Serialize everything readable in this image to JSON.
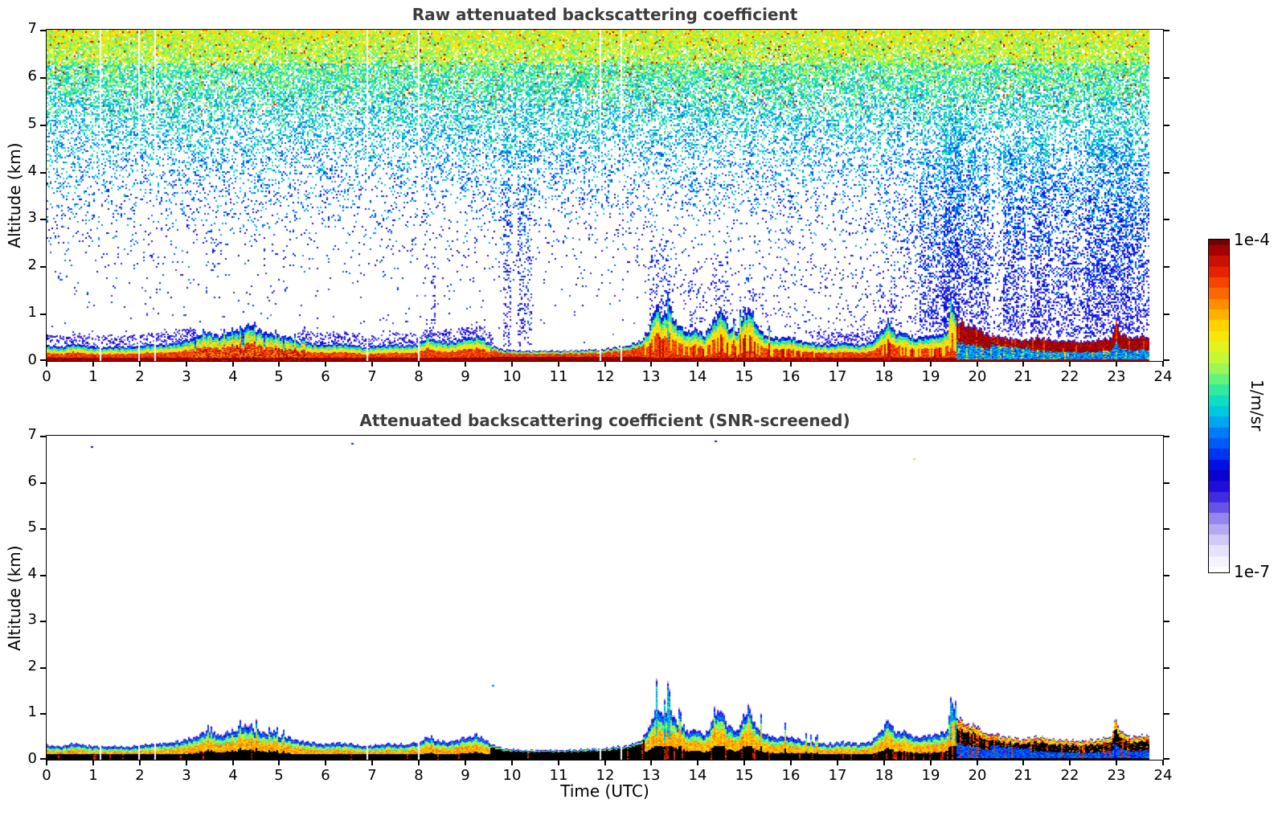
{
  "figure": {
    "background": "#ffffff"
  },
  "colorbar": {
    "max_label": "1e-4",
    "min_label": "1e-7",
    "units": "1/m/sr"
  },
  "colormap": {
    "stops": [
      [
        0.0,
        "#ffffff"
      ],
      [
        0.04,
        "#f2f0fc"
      ],
      [
        0.08,
        "#ded9fa"
      ],
      [
        0.12,
        "#beb4f2"
      ],
      [
        0.16,
        "#9688ec"
      ],
      [
        0.2,
        "#5d48e6"
      ],
      [
        0.25,
        "#2410dc"
      ],
      [
        0.29,
        "#0a00d0"
      ],
      [
        0.33,
        "#0013e8"
      ],
      [
        0.37,
        "#0048f4"
      ],
      [
        0.42,
        "#007df8"
      ],
      [
        0.46,
        "#00b1f0"
      ],
      [
        0.5,
        "#00d8d2"
      ],
      [
        0.54,
        "#22e7a7"
      ],
      [
        0.58,
        "#66f37a"
      ],
      [
        0.62,
        "#a5f84e"
      ],
      [
        0.66,
        "#d8f629"
      ],
      [
        0.7,
        "#f4ec0d"
      ],
      [
        0.74,
        "#ffd500"
      ],
      [
        0.78,
        "#ffab00"
      ],
      [
        0.82,
        "#ff7d00"
      ],
      [
        0.86,
        "#fb4f00"
      ],
      [
        0.9,
        "#ea2400"
      ],
      [
        0.94,
        "#c80d00"
      ],
      [
        0.97,
        "#a00000"
      ],
      [
        1.0,
        "#730000"
      ]
    ],
    "n_discrete_bands": 32
  },
  "scene": {
    "data_end_hour": 23.7,
    "gaps_hours": [
      1.17,
      1.98,
      2.33,
      6.88,
      7.99,
      11.92,
      12.36
    ],
    "boundary_layer_top_km": [
      [
        0,
        0.33
      ],
      [
        0.3,
        0.3
      ],
      [
        0.6,
        0.38
      ],
      [
        0.9,
        0.32
      ],
      [
        1.2,
        0.3
      ],
      [
        1.5,
        0.32
      ],
      [
        1.8,
        0.3
      ],
      [
        2.1,
        0.34
      ],
      [
        2.4,
        0.36
      ],
      [
        2.7,
        0.38
      ],
      [
        3.0,
        0.45
      ],
      [
        3.2,
        0.52
      ],
      [
        3.45,
        0.62
      ],
      [
        3.7,
        0.55
      ],
      [
        3.95,
        0.62
      ],
      [
        4.15,
        0.7
      ],
      [
        4.35,
        0.78
      ],
      [
        4.55,
        0.65
      ],
      [
        4.75,
        0.6
      ],
      [
        5.0,
        0.55
      ],
      [
        5.2,
        0.5
      ],
      [
        5.45,
        0.42
      ],
      [
        5.7,
        0.38
      ],
      [
        6.0,
        0.36
      ],
      [
        6.3,
        0.38
      ],
      [
        6.6,
        0.35
      ],
      [
        6.85,
        0.3
      ],
      [
        7.1,
        0.33
      ],
      [
        7.4,
        0.36
      ],
      [
        7.7,
        0.34
      ],
      [
        8.0,
        0.38
      ],
      [
        8.2,
        0.55
      ],
      [
        8.35,
        0.45
      ],
      [
        8.6,
        0.4
      ],
      [
        8.85,
        0.45
      ],
      [
        9.05,
        0.52
      ],
      [
        9.25,
        0.55
      ],
      [
        9.4,
        0.48
      ],
      [
        9.55,
        0.35
      ],
      [
        9.8,
        0.25
      ],
      [
        10.2,
        0.22
      ],
      [
        10.8,
        0.22
      ],
      [
        11.4,
        0.23
      ],
      [
        12.0,
        0.26
      ],
      [
        12.5,
        0.32
      ],
      [
        12.8,
        0.45
      ],
      [
        12.95,
        0.7
      ],
      [
        13.1,
        1.2
      ],
      [
        13.25,
        0.95
      ],
      [
        13.4,
        1.15
      ],
      [
        13.55,
        0.8
      ],
      [
        13.75,
        0.62
      ],
      [
        13.95,
        0.68
      ],
      [
        14.15,
        0.55
      ],
      [
        14.35,
        0.9
      ],
      [
        14.5,
        1.1
      ],
      [
        14.65,
        0.75
      ],
      [
        14.85,
        0.62
      ],
      [
        15.0,
        1.0
      ],
      [
        15.1,
        1.2
      ],
      [
        15.25,
        0.75
      ],
      [
        15.45,
        0.55
      ],
      [
        15.7,
        0.5
      ],
      [
        15.95,
        0.52
      ],
      [
        16.2,
        0.45
      ],
      [
        16.5,
        0.38
      ],
      [
        16.8,
        0.36
      ],
      [
        17.1,
        0.4
      ],
      [
        17.45,
        0.36
      ],
      [
        17.75,
        0.42
      ],
      [
        17.95,
        0.65
      ],
      [
        18.1,
        0.9
      ],
      [
        18.25,
        0.6
      ],
      [
        18.45,
        0.62
      ],
      [
        18.65,
        0.5
      ],
      [
        18.9,
        0.55
      ],
      [
        19.15,
        0.55
      ],
      [
        19.32,
        0.62
      ],
      [
        19.38,
        0.68
      ],
      [
        19.44,
        1.5
      ],
      [
        19.52,
        1.05
      ],
      [
        19.6,
        0.9
      ],
      [
        19.75,
        0.8
      ],
      [
        19.95,
        0.75
      ],
      [
        20.15,
        0.62
      ],
      [
        20.4,
        0.55
      ],
      [
        20.7,
        0.5
      ],
      [
        21.0,
        0.46
      ],
      [
        21.3,
        0.52
      ],
      [
        21.6,
        0.46
      ],
      [
        21.9,
        0.44
      ],
      [
        22.2,
        0.42
      ],
      [
        22.5,
        0.44
      ],
      [
        22.8,
        0.5
      ],
      [
        22.9,
        0.5
      ],
      [
        22.98,
        0.92
      ],
      [
        23.08,
        0.62
      ],
      [
        23.35,
        0.5
      ],
      [
        23.55,
        0.55
      ],
      [
        23.7,
        0.5
      ]
    ],
    "regimes": [
      {
        "t0": 0,
        "t1": 3.0,
        "style": "normal"
      },
      {
        "t0": 3.0,
        "t1": 5.6,
        "style": "convective"
      },
      {
        "t0": 5.6,
        "t1": 9.55,
        "style": "normal"
      },
      {
        "t0": 9.55,
        "t1": 12.85,
        "style": "thin"
      },
      {
        "t0": 12.85,
        "t1": 16.6,
        "style": "plume"
      },
      {
        "t0": 16.6,
        "t1": 17.8,
        "style": "normal"
      },
      {
        "t0": 17.8,
        "t1": 19.55,
        "style": "plume"
      },
      {
        "t0": 19.55,
        "t1": 23.75,
        "style": "inverted"
      }
    ],
    "surface_blue_interval": [
      20.3,
      21.15
    ],
    "cap_speckle_intervals": [
      [
        0,
        3.2
      ],
      [
        5.4,
        9.6
      ],
      [
        16.4,
        17.9
      ]
    ],
    "blue_noise_events": [
      {
        "t0": 8.25,
        "t1": 8.38,
        "top_km": 2.3,
        "density": 0.22
      },
      {
        "t0": 9.82,
        "t1": 9.98,
        "top_km": 4.7,
        "density": 0.3
      },
      {
        "t0": 10.12,
        "t1": 10.45,
        "top_km": 4.6,
        "density": 0.25
      },
      {
        "t0": 12.95,
        "t1": 13.45,
        "top_km": 2.6,
        "density": 0.22
      },
      {
        "t0": 13.8,
        "t1": 14.0,
        "top_km": 1.8,
        "density": 0.15
      },
      {
        "t0": 14.35,
        "t1": 14.65,
        "top_km": 2.3,
        "density": 0.2
      },
      {
        "t0": 14.95,
        "t1": 15.2,
        "top_km": 2.1,
        "density": 0.18
      },
      {
        "t0": 12.85,
        "t1": 18.0,
        "top_km": 2.0,
        "density": 0.08
      },
      {
        "t0": 17.85,
        "t1": 18.25,
        "top_km": 1.9,
        "density": 0.15
      },
      {
        "t0": 18.75,
        "t1": 19.3,
        "top_km": 4.2,
        "density": 0.3
      },
      {
        "t0": 19.3,
        "t1": 19.65,
        "top_km": 5.2,
        "density": 0.55
      },
      {
        "t0": 19.65,
        "t1": 20.3,
        "top_km": 4.3,
        "density": 0.3
      },
      {
        "t0": 20.55,
        "t1": 21.05,
        "top_km": 4.6,
        "density": 0.35
      },
      {
        "t0": 21.15,
        "t1": 21.55,
        "top_km": 4.8,
        "density": 0.4
      },
      {
        "t0": 21.55,
        "t1": 22.35,
        "top_km": 4.0,
        "density": 0.22
      },
      {
        "t0": 22.35,
        "t1": 23.35,
        "top_km": 4.9,
        "density": 0.42
      },
      {
        "t0": 23.35,
        "t1": 23.72,
        "top_km": 4.2,
        "density": 0.35
      },
      {
        "t0": 18.0,
        "t1": 23.72,
        "top_km": 4.5,
        "density": 0.12
      }
    ]
  },
  "chart_data": [
    {
      "type": "heatmap",
      "title": "Raw attenuated backscattering coefficient",
      "xlabel": "",
      "ylabel": "Altitude (km)",
      "xlim": [
        0,
        24
      ],
      "ylim": [
        0,
        7
      ],
      "x_tick_labels": [
        "0",
        "1",
        "2",
        "3",
        "4",
        "5",
        "6",
        "7",
        "8",
        "9",
        "10",
        "11",
        "12",
        "13",
        "14",
        "15",
        "16",
        "17",
        "18",
        "19",
        "20",
        "21",
        "22",
        "23",
        "24"
      ],
      "y_tick_labels": [
        "0",
        "1",
        "2",
        "3",
        "4",
        "5",
        "6",
        "7"
      ],
      "value_scale": "log10, 1e-7 to 1e-4 1/m/sr",
      "surface": "dark-red",
      "noise": {
        "present": true,
        "top_density": 0.97,
        "scale_km": 2.2,
        "power": 1.5,
        "value_base": 0.26,
        "value_gain": 0.36,
        "value_jitter": 0.2,
        "red_speck_prob": 0.035
      }
    },
    {
      "type": "heatmap",
      "title": "Attenuated backscattering coefficient (SNR-screened)",
      "xlabel": "Time (UTC)",
      "ylabel": "Altitude (km)",
      "xlim": [
        0,
        24
      ],
      "ylim": [
        0,
        7
      ],
      "x_tick_labels": [
        "0",
        "1",
        "2",
        "3",
        "4",
        "5",
        "6",
        "7",
        "8",
        "9",
        "10",
        "11",
        "12",
        "13",
        "14",
        "15",
        "16",
        "17",
        "18",
        "19",
        "20",
        "21",
        "22",
        "23",
        "24"
      ],
      "y_tick_labels": [
        "0",
        "1",
        "2",
        "3",
        "4",
        "5",
        "6",
        "7"
      ],
      "value_scale": "log10, 1e-7 to 1e-4 1/m/sr",
      "surface": "black",
      "noise": {
        "present": false
      },
      "specks": [
        {
          "t": 0.95,
          "alt_km": 6.78,
          "v": 0.3
        },
        {
          "t": 6.55,
          "alt_km": 6.85,
          "v": 0.35
        },
        {
          "t": 9.58,
          "alt_km": 1.62,
          "v": 0.42
        },
        {
          "t": 14.35,
          "alt_km": 6.9,
          "v": 0.32
        },
        {
          "t": 18.62,
          "alt_km": 6.52,
          "v": 0.62
        }
      ]
    }
  ]
}
